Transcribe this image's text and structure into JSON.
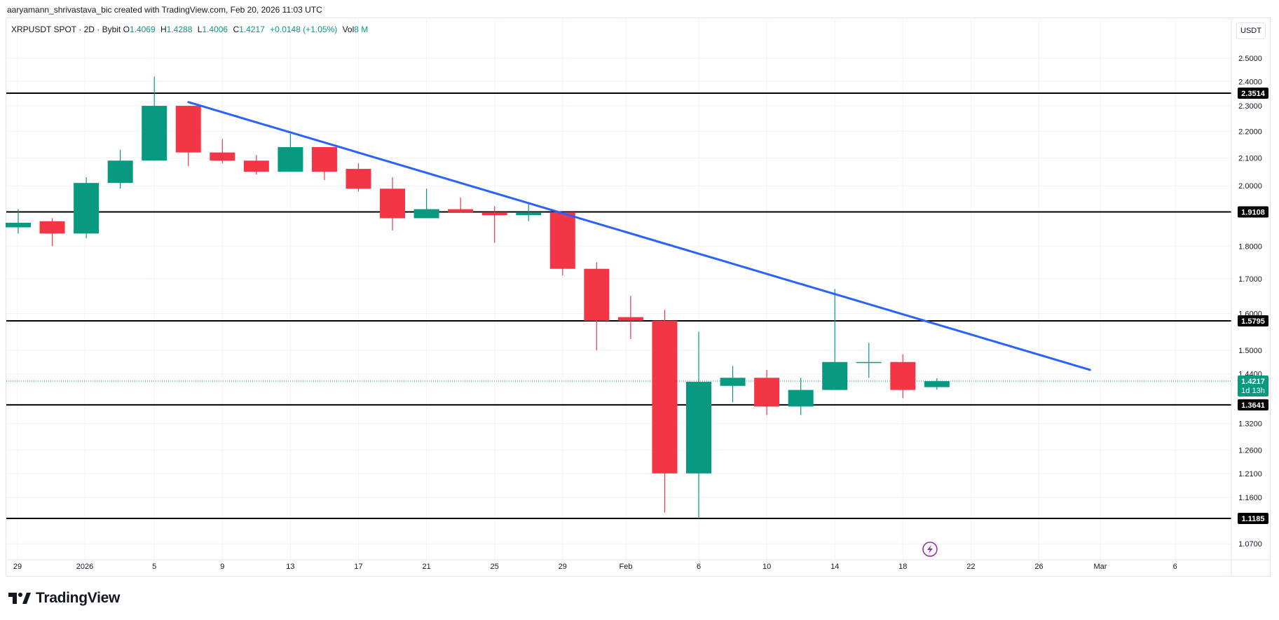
{
  "header": {
    "attribution": "aaryamann_shrivastava_bic created with TradingView.com, Feb 20, 2026 11:03 UTC"
  },
  "legend": {
    "symbol": "XRPUSDT SPOT · 2D · Bybit",
    "open_label": "O",
    "open": "1.4069",
    "high_label": "H",
    "high": "1.4288",
    "low_label": "L",
    "low": "1.4006",
    "close_label": "C",
    "close": "1.4217",
    "change": "+0.0148 (+1.05%)",
    "vol_label": "Vol",
    "vol": "8 M"
  },
  "currency_button": "USDT",
  "logo_text": "TradingView",
  "colors": {
    "up": "#089981",
    "down": "#f23645",
    "trendline": "#2962ff",
    "level": "#000000",
    "text": "#131722",
    "grid": "#f0f3fa"
  },
  "chart_data": {
    "type": "candlestick",
    "y_ticks": [
      "1.0700",
      "1.1600",
      "1.2100",
      "1.2600",
      "1.3200",
      "1.4400",
      "1.5000",
      "1.6000",
      "1.7000",
      "1.8000",
      "2.0000",
      "2.1000",
      "2.2000",
      "2.3000",
      "2.4000",
      "2.5000"
    ],
    "x_ticks": [
      "29",
      "2026",
      "5",
      "9",
      "13",
      "17",
      "21",
      "25",
      "29",
      "Feb",
      "6",
      "10",
      "14",
      "18",
      "22",
      "26",
      "Mar",
      "6"
    ],
    "candles": [
      {
        "date": "2025-12-28",
        "open": 1.86,
        "high": 1.92,
        "low": 1.84,
        "close": 1.875
      },
      {
        "date": "2025-12-30",
        "open": 1.88,
        "high": 1.89,
        "low": 1.8,
        "close": 1.84
      },
      {
        "date": "2026-01-01",
        "open": 1.84,
        "high": 2.03,
        "low": 1.825,
        "close": 2.01
      },
      {
        "date": "2026-01-03",
        "open": 2.01,
        "high": 2.13,
        "low": 1.99,
        "close": 2.09
      },
      {
        "date": "2026-01-05",
        "open": 2.09,
        "high": 2.42,
        "low": 2.09,
        "close": 2.3
      },
      {
        "date": "2026-01-07",
        "open": 2.3,
        "high": 2.3,
        "low": 2.07,
        "close": 2.12
      },
      {
        "date": "2026-01-09",
        "open": 2.12,
        "high": 2.17,
        "low": 2.08,
        "close": 2.09
      },
      {
        "date": "2026-01-11",
        "open": 2.09,
        "high": 2.11,
        "low": 2.04,
        "close": 2.05
      },
      {
        "date": "2026-01-13",
        "open": 2.05,
        "high": 2.19,
        "low": 2.05,
        "close": 2.14
      },
      {
        "date": "2026-01-15",
        "open": 2.14,
        "high": 2.14,
        "low": 2.02,
        "close": 2.05
      },
      {
        "date": "2026-01-17",
        "open": 2.06,
        "high": 2.08,
        "low": 1.98,
        "close": 1.99
      },
      {
        "date": "2026-01-19",
        "open": 1.99,
        "high": 2.03,
        "low": 1.85,
        "close": 1.89
      },
      {
        "date": "2026-01-21",
        "open": 1.89,
        "high": 1.99,
        "low": 1.89,
        "close": 1.92
      },
      {
        "date": "2026-01-23",
        "open": 1.92,
        "high": 1.96,
        "low": 1.91,
        "close": 1.91
      },
      {
        "date": "2026-01-25",
        "open": 1.91,
        "high": 1.93,
        "low": 1.81,
        "close": 1.9
      },
      {
        "date": "2026-01-27",
        "open": 1.9,
        "high": 1.94,
        "low": 1.88,
        "close": 1.91
      },
      {
        "date": "2026-01-29",
        "open": 1.91,
        "high": 1.91,
        "low": 1.71,
        "close": 1.73
      },
      {
        "date": "2026-01-31",
        "open": 1.73,
        "high": 1.75,
        "low": 1.5,
        "close": 1.58
      },
      {
        "date": "2026-02-02",
        "open": 1.59,
        "high": 1.65,
        "low": 1.53,
        "close": 1.58
      },
      {
        "date": "2026-02-04",
        "open": 1.58,
        "high": 1.61,
        "low": 1.13,
        "close": 1.21
      },
      {
        "date": "2026-02-06",
        "open": 1.21,
        "high": 1.55,
        "low": 1.1185,
        "close": 1.42
      },
      {
        "date": "2026-02-08",
        "open": 1.41,
        "high": 1.46,
        "low": 1.37,
        "close": 1.43
      },
      {
        "date": "2026-02-10",
        "open": 1.43,
        "high": 1.45,
        "low": 1.34,
        "close": 1.36
      },
      {
        "date": "2026-02-12",
        "open": 1.36,
        "high": 1.43,
        "low": 1.34,
        "close": 1.4
      },
      {
        "date": "2026-02-14",
        "open": 1.4,
        "high": 1.67,
        "low": 1.4,
        "close": 1.47
      },
      {
        "date": "2026-02-16",
        "open": 1.47,
        "high": 1.52,
        "low": 1.43,
        "close": 1.47
      },
      {
        "date": "2026-02-18",
        "open": 1.47,
        "high": 1.49,
        "low": 1.38,
        "close": 1.4
      },
      {
        "date": "2026-02-20",
        "open": 1.4069,
        "high": 1.4288,
        "low": 1.4006,
        "close": 1.4217
      }
    ],
    "horizontal_levels": [
      "2.3514",
      "1.9108",
      "1.5795",
      "1.3641",
      "1.1185"
    ],
    "trendline": {
      "start": {
        "date": "2026-01-07",
        "price": 2.315
      },
      "end": {
        "date": "2026-03-01",
        "price": 1.45
      }
    },
    "current_price": {
      "value": "1.4217",
      "countdown": "1d 13h"
    },
    "scale": "log",
    "grid": true
  }
}
